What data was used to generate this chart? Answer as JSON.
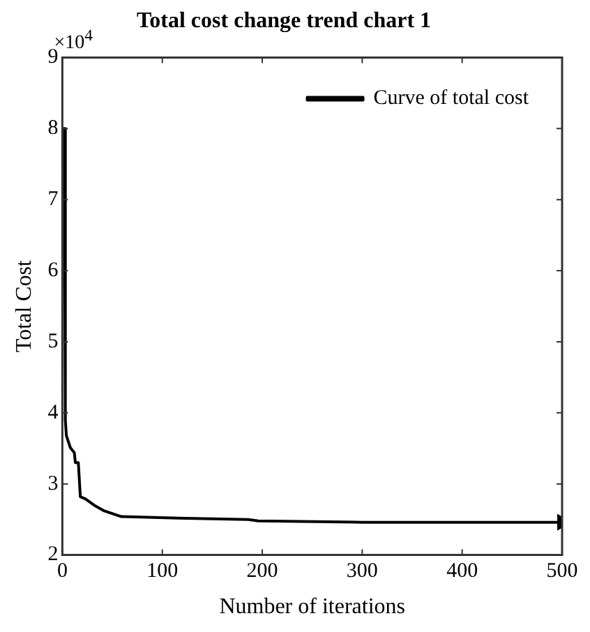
{
  "chart_data": {
    "type": "line",
    "title": "Total cost change trend chart 1",
    "xlabel": "Number of iterations",
    "ylabel": "Total Cost",
    "annotations": [
      "×10$^{4}$"
    ],
    "x": [
      0,
      2,
      3,
      4,
      8,
      12,
      13,
      16,
      18,
      23,
      33,
      42,
      59,
      110,
      186,
      196,
      300,
      500
    ],
    "series": [
      {
        "name": "Curve of total cost",
        "color": "#000000",
        "values": [
          8.0,
          8.0,
          3.9,
          3.68,
          3.51,
          3.44,
          3.3,
          3.3,
          2.82,
          2.79,
          2.69,
          2.62,
          2.54,
          2.52,
          2.5,
          2.48,
          2.46,
          2.46
        ]
      }
    ],
    "xlim": [
      0,
      500
    ],
    "xticks": [
      0,
      100,
      200,
      300,
      400,
      500
    ],
    "ylim": [
      2,
      9
    ],
    "yticks": [
      2,
      3,
      4,
      5,
      6,
      7,
      8,
      9
    ],
    "grid": false,
    "legend": "top right",
    "marker": "none",
    "line_style": "solid"
  }
}
